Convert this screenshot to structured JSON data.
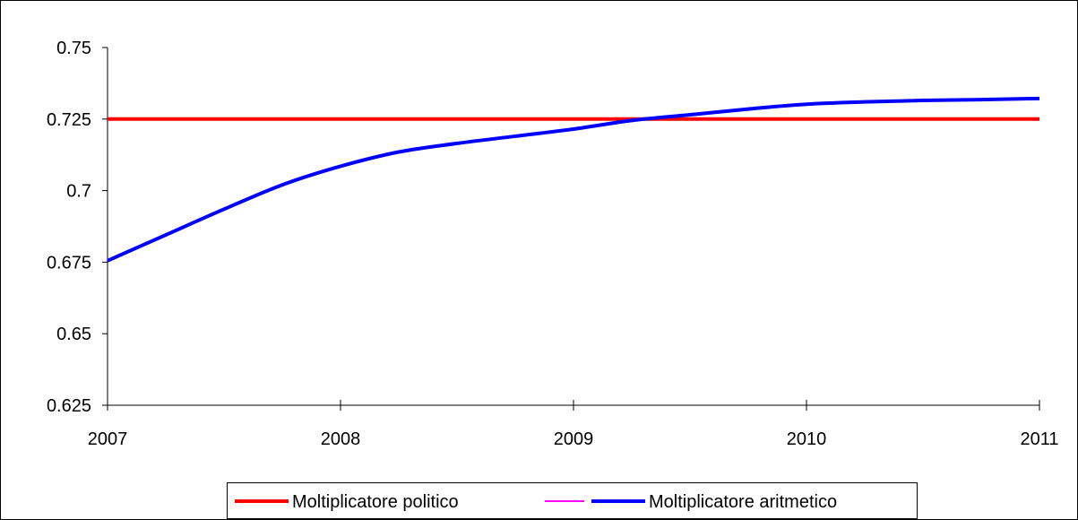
{
  "chart_data": {
    "type": "line",
    "title": "",
    "xlabel": "",
    "ylabel": "",
    "x_ticks": [
      "2007",
      "2008",
      "2009",
      "2010",
      "2011"
    ],
    "y_ticks": [
      "0.625",
      "0.65",
      "0.675",
      "0.7",
      "0.725",
      "0.75"
    ],
    "xlim": [
      2007,
      2011
    ],
    "ylim": [
      0.625,
      0.75
    ],
    "grid": false,
    "legend_position": "bottom",
    "series": [
      {
        "name": "Moltiplicatore politico",
        "color": "#ff0000",
        "x": [
          2007,
          2011
        ],
        "values": [
          0.725,
          0.725
        ]
      },
      {
        "name": "",
        "color": "#ff00ff",
        "x": [],
        "values": []
      },
      {
        "name": "Moltiplicatore aritmetico",
        "color": "#0000ff",
        "x": [
          2007,
          2007.25,
          2007.5,
          2007.75,
          2008,
          2008.25,
          2008.5,
          2008.75,
          2009,
          2009.25,
          2009.5,
          2009.75,
          2010,
          2010.25,
          2010.5,
          2010.75,
          2011
        ],
        "values": [
          0.6755,
          0.6845,
          0.6935,
          0.702,
          0.7085,
          0.7135,
          0.7165,
          0.719,
          0.7215,
          0.7245,
          0.7265,
          0.7285,
          0.7302,
          0.731,
          0.7315,
          0.7318,
          0.7322
        ]
      }
    ]
  }
}
